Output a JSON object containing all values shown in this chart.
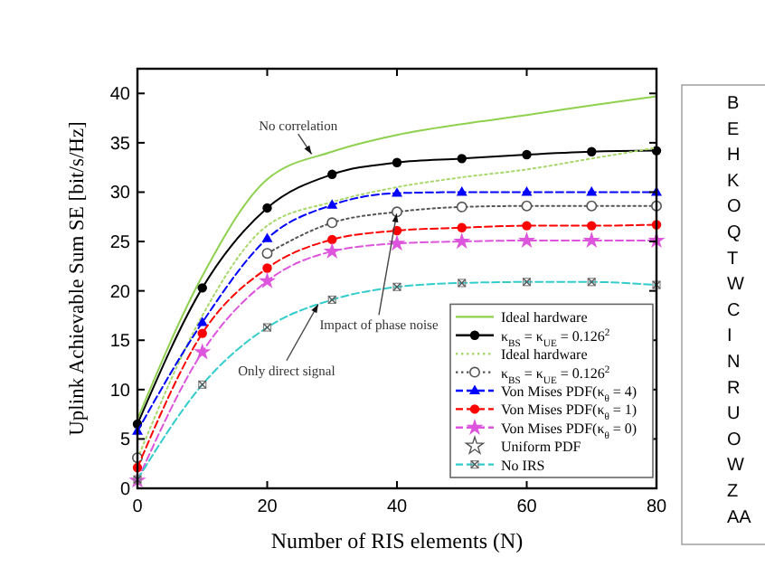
{
  "chart_data": {
    "type": "line",
    "xlabel": "Number of RIS elements (N)",
    "ylabel": "Uplink Achievable Sum SE [bit/s/Hz]",
    "x": [
      0,
      10,
      20,
      30,
      40,
      50,
      60,
      70,
      80
    ],
    "xlim": [
      0,
      80
    ],
    "xticks": [
      0,
      20,
      40,
      60,
      80
    ],
    "ylim": [
      0,
      42.5
    ],
    "yticks": [
      0,
      5,
      10,
      15,
      20,
      25,
      30,
      35,
      40
    ],
    "grid": false,
    "legend": "bottom right",
    "series": [
      {
        "name": "Ideal hardware",
        "color": "#8fd14f",
        "line_style": "solid",
        "marker": "none",
        "values": [
          7,
          21.5,
          31.3,
          34.1,
          35.8,
          36.9,
          37.8,
          38.8,
          39.7
        ]
      },
      {
        "name": "κ$_{BS}$ = κ$_{UE}$ = 0.126$^{2}$",
        "color": "#000000",
        "line_style": "solid",
        "marker": "circle",
        "values": [
          6.5,
          20.3,
          28.4,
          31.8,
          33.0,
          33.4,
          33.8,
          34.1,
          34.2
        ]
      },
      {
        "name": "Ideal hardware",
        "color": "#a8d86a",
        "line_style": "dotted",
        "marker": "none",
        "values": [
          3,
          17.5,
          26.6,
          29,
          30.5,
          31.5,
          32.3,
          33.4,
          34.5
        ]
      },
      {
        "name": "κ$_{BS}$ = κ$_{UE}$ = 0.126$^{2}$",
        "color": "#555555",
        "line_style": "dotted",
        "marker": "open-circle",
        "values": [
          3.1,
          null,
          23.8,
          26.9,
          28.0,
          28.5,
          28.6,
          28.6,
          28.6
        ]
      },
      {
        "name": "Von Mises PDF(κ$_{θ}$ = 4)",
        "color": "#0000ff",
        "line_style": "dashed",
        "marker": "triangle",
        "values": [
          5.8,
          16.8,
          25.3,
          28.7,
          29.9,
          30.0,
          30.0,
          30.0,
          30.0
        ]
      },
      {
        "name": "Von Mises PDF(κ$_{θ}$ = 1)",
        "color": "#ff0000",
        "line_style": "dashed",
        "marker": "circle",
        "values": [
          2.1,
          15.7,
          22.3,
          25.2,
          26.1,
          26.4,
          26.6,
          26.6,
          26.7
        ]
      },
      {
        "name": "Von Mises PDF(κ$_{θ}$ = 0)",
        "color": "#dd55dd",
        "line_style": "dashed",
        "marker": "star",
        "values": [
          0.8,
          13.8,
          21.0,
          24.0,
          24.8,
          25.0,
          25.1,
          25.1,
          25.1
        ]
      },
      {
        "name": "Uniform PDF",
        "color": "#555555",
        "line_style": "none",
        "marker": "open-star",
        "values": [
          null,
          null,
          null,
          null,
          null,
          null,
          null,
          null,
          null
        ]
      },
      {
        "name": "No IRS",
        "color": "#33cccc",
        "line_style": "dashed",
        "marker": "square",
        "values": [
          0.9,
          10.5,
          16.3,
          19.1,
          20.4,
          20.8,
          20.9,
          20.9,
          20.6
        ]
      }
    ],
    "annotations": [
      {
        "text": "No correlation",
        "x": 27,
        "y": 33.7
      },
      {
        "text": "Impact of phase noise",
        "x": 40,
        "y": 28
      },
      {
        "text": "Only direct signal",
        "x": 28,
        "y": 18.8
      },
      "B",
      "E",
      "H",
      "K",
      "O",
      "Q",
      "T",
      "W",
      "C",
      "I",
      "N",
      "R",
      "U",
      "O",
      "W",
      "Z",
      "AA"
    ]
  }
}
